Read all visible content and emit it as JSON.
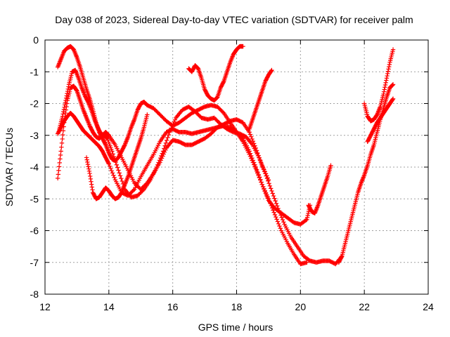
{
  "chart_data": {
    "type": "scatter",
    "title": "Day 038 of 2023, Sidereal Day-to-day VTEC variation (SDTVAR) for receiver palm",
    "xlabel": "GPS time / hours",
    "ylabel": "SDTVAR / TECUs",
    "xlim": [
      12,
      24
    ],
    "ylim": [
      -8,
      0
    ],
    "xticks": [
      12,
      14,
      16,
      18,
      20,
      22,
      24
    ],
    "yticks": [
      0,
      -1,
      -2,
      -3,
      -4,
      -5,
      -6,
      -7,
      -8
    ],
    "grid": true,
    "marker": "plus",
    "color": "#ff0000",
    "series": [
      {
        "x": [
          12.4,
          12.5,
          12.6,
          12.7,
          12.8,
          12.9,
          13.0,
          13.1,
          13.2,
          13.3,
          13.4,
          13.5,
          13.6,
          13.7,
          13.8,
          13.9,
          14.0,
          14.1,
          14.2,
          14.3,
          14.4,
          14.5,
          14.6,
          14.7,
          14.8,
          14.9,
          15.0,
          15.1,
          15.2,
          15.4,
          15.6,
          15.8,
          16.0,
          16.2,
          16.4,
          16.6,
          16.8,
          17.0,
          17.2,
          17.4,
          17.6,
          17.8,
          18.0,
          18.2,
          18.4,
          18.6,
          18.8,
          19.0,
          19.2,
          19.4,
          19.6,
          19.8,
          20.0,
          20.2,
          20.3
        ],
        "y": [
          -0.85,
          -0.6,
          -0.35,
          -0.25,
          -0.2,
          -0.3,
          -0.55,
          -0.85,
          -1.2,
          -1.55,
          -1.85,
          -2.2,
          -2.6,
          -2.9,
          -3.1,
          -3.3,
          -3.55,
          -3.75,
          -3.8,
          -3.7,
          -3.5,
          -3.3,
          -3.05,
          -2.75,
          -2.5,
          -2.2,
          -2.0,
          -1.95,
          -2.05,
          -2.15,
          -2.35,
          -2.55,
          -2.7,
          -2.6,
          -2.45,
          -2.3,
          -2.2,
          -2.1,
          -2.05,
          -2.1,
          -2.3,
          -2.6,
          -2.9,
          -3.1,
          -3.5,
          -4.0,
          -4.55,
          -5.05,
          -5.3,
          -5.45,
          -5.6,
          -5.75,
          -5.8,
          -5.65,
          -5.2
        ]
      },
      {
        "x": [
          12.45,
          12.55,
          12.65,
          12.75,
          12.85,
          12.95,
          13.05,
          13.15,
          13.25,
          13.35,
          13.45,
          13.55,
          13.65,
          13.75,
          13.85,
          13.95,
          14.1,
          14.3,
          14.5,
          14.7,
          14.9,
          15.1,
          15.3,
          15.5,
          15.7,
          15.9,
          16.1,
          16.3,
          16.5,
          16.7,
          16.9,
          17.1,
          17.3,
          17.5,
          17.7,
          17.9,
          18.1,
          18.3,
          18.5,
          18.7,
          18.9,
          19.1,
          19.3,
          19.5,
          19.7,
          19.9,
          20.1,
          20.3,
          20.5,
          20.7,
          20.9,
          21.1,
          21.3
        ],
        "y": [
          -2.8,
          -2.4,
          -1.9,
          -1.4,
          -1.0,
          -0.95,
          -1.2,
          -1.5,
          -1.75,
          -1.95,
          -2.2,
          -2.5,
          -2.75,
          -2.95,
          -3.0,
          -3.1,
          -3.5,
          -4.1,
          -4.7,
          -4.95,
          -4.9,
          -4.7,
          -4.4,
          -4.0,
          -3.5,
          -2.9,
          -2.45,
          -2.2,
          -2.1,
          -2.25,
          -2.45,
          -2.5,
          -2.45,
          -2.65,
          -2.8,
          -2.9,
          -2.95,
          -3.05,
          -3.3,
          -3.7,
          -4.2,
          -4.75,
          -5.3,
          -5.8,
          -6.2,
          -6.5,
          -6.8,
          -6.95,
          -7.0,
          -6.95,
          -6.95,
          -7.05,
          -6.8
        ]
      },
      {
        "x": [
          12.4,
          12.5,
          12.6,
          12.7,
          12.8,
          12.9,
          13.0,
          13.1,
          13.2,
          13.3,
          13.4,
          13.5,
          13.6,
          13.7,
          13.8,
          13.9,
          14.0,
          14.2,
          14.4,
          14.6,
          14.8,
          15.0,
          15.2,
          15.4,
          15.6,
          15.8,
          16.0,
          16.2,
          16.4,
          16.6,
          16.8,
          17.0,
          17.2,
          17.4,
          17.6,
          17.8,
          18.0,
          18.2,
          18.4,
          18.6,
          18.8,
          19.0,
          19.2,
          19.4,
          19.6,
          19.8,
          20.0,
          20.2
        ],
        "y": [
          -4.35,
          -3.5,
          -2.6,
          -1.9,
          -1.5,
          -1.45,
          -1.6,
          -1.9,
          -2.2,
          -2.45,
          -2.7,
          -2.9,
          -3.05,
          -3.1,
          -3.0,
          -2.9,
          -3.0,
          -3.3,
          -3.7,
          -4.1,
          -4.5,
          -4.7,
          -4.5,
          -4.2,
          -3.85,
          -3.4,
          -3.15,
          -3.2,
          -3.3,
          -3.3,
          -3.2,
          -3.1,
          -2.95,
          -2.75,
          -2.7,
          -2.75,
          -2.9,
          -3.2,
          -3.6,
          -4.05,
          -4.55,
          -5.0,
          -5.5,
          -6.0,
          -6.4,
          -6.75,
          -7.05,
          -7.0
        ]
      },
      {
        "x": [
          12.4,
          12.5,
          12.6,
          12.7,
          12.8,
          12.9,
          13.0,
          13.1,
          13.2,
          13.3,
          13.4,
          13.5,
          13.6,
          13.7,
          13.8,
          13.9,
          14.0,
          14.2,
          14.4,
          14.6,
          14.8,
          15.0,
          15.2,
          15.4,
          15.6,
          15.8,
          16.0,
          16.2,
          16.4,
          16.6,
          16.8,
          17.0,
          17.2,
          17.4,
          17.6,
          17.8,
          18.0,
          18.2,
          18.4,
          18.6,
          18.8,
          19.0
        ],
        "y": [
          -2.95,
          -2.75,
          -2.55,
          -2.4,
          -2.3,
          -2.4,
          -2.55,
          -2.7,
          -2.85,
          -2.95,
          -3.05,
          -3.15,
          -3.25,
          -3.35,
          -3.5,
          -3.7,
          -3.9,
          -4.4,
          -4.8,
          -4.9,
          -4.7,
          -4.3,
          -3.95,
          -3.6,
          -3.2,
          -2.9,
          -2.8,
          -2.9,
          -2.9,
          -2.95,
          -2.9,
          -2.85,
          -2.8,
          -2.75,
          -2.65,
          -2.55,
          -2.5,
          -2.6,
          -2.9,
          -3.4,
          -3.95,
          -4.4
        ]
      },
      {
        "x": [
          13.3,
          13.4,
          13.5,
          13.6,
          13.7,
          13.8,
          13.9,
          14.0,
          14.1,
          14.2,
          14.3,
          14.4,
          14.5,
          14.6,
          14.7,
          14.8,
          14.9,
          15.0,
          15.1,
          15.2
        ],
        "y": [
          -3.7,
          -4.2,
          -4.8,
          -5.0,
          -4.95,
          -4.8,
          -4.65,
          -4.75,
          -4.9,
          -5.0,
          -4.95,
          -4.8,
          -4.55,
          -4.3,
          -4.0,
          -3.7,
          -3.4,
          -3.1,
          -2.75,
          -2.35
        ]
      },
      {
        "x": [
          16.5,
          16.6,
          16.7,
          16.8,
          16.9,
          17.0,
          17.1,
          17.2,
          17.3,
          17.4,
          17.5,
          17.6,
          17.7,
          17.8,
          17.9,
          18.0,
          18.1,
          18.2
        ],
        "y": [
          -0.9,
          -1.0,
          -0.8,
          -0.9,
          -1.2,
          -1.55,
          -1.75,
          -1.85,
          -1.9,
          -1.8,
          -1.5,
          -1.3,
          -1.0,
          -0.7,
          -0.45,
          -0.3,
          -0.2,
          -0.2
        ]
      },
      {
        "x": [
          18.4,
          18.5,
          18.6,
          18.7,
          18.8,
          18.9,
          19.0,
          19.1
        ],
        "y": [
          -2.8,
          -2.5,
          -2.2,
          -1.9,
          -1.6,
          -1.3,
          -1.1,
          -0.95
        ]
      },
      {
        "x": [
          20.25,
          20.35,
          20.45,
          20.55,
          20.65,
          20.75,
          20.85,
          20.95
        ],
        "y": [
          -5.2,
          -5.4,
          -5.45,
          -5.2,
          -4.9,
          -4.6,
          -4.3,
          -3.95
        ]
      },
      {
        "x": [
          21.2,
          21.3,
          21.4,
          21.5,
          21.6,
          21.7,
          21.8,
          21.9,
          22.0,
          22.1,
          22.2,
          22.3,
          22.4,
          22.5,
          22.6,
          22.7,
          22.8,
          22.9
        ],
        "y": [
          -7.0,
          -6.8,
          -6.4,
          -6.0,
          -5.6,
          -5.2,
          -4.8,
          -4.5,
          -4.25,
          -3.95,
          -3.6,
          -3.3,
          -2.9,
          -2.5,
          -2.15,
          -1.8,
          -1.5,
          -1.4
        ]
      },
      {
        "x": [
          22.0,
          22.1,
          22.2,
          22.3,
          22.4,
          22.5,
          22.6,
          22.7,
          22.8,
          22.9
        ],
        "y": [
          -2.0,
          -2.4,
          -2.55,
          -2.5,
          -2.35,
          -2.1,
          -1.7,
          -1.2,
          -0.7,
          -0.3
        ]
      },
      {
        "x": [
          22.1,
          22.2,
          22.3,
          22.4,
          22.5,
          22.6,
          22.7,
          22.8,
          22.9
        ],
        "y": [
          -3.2,
          -3.0,
          -2.8,
          -2.6,
          -2.45,
          -2.3,
          -2.15,
          -2.0,
          -1.85
        ]
      }
    ]
  }
}
